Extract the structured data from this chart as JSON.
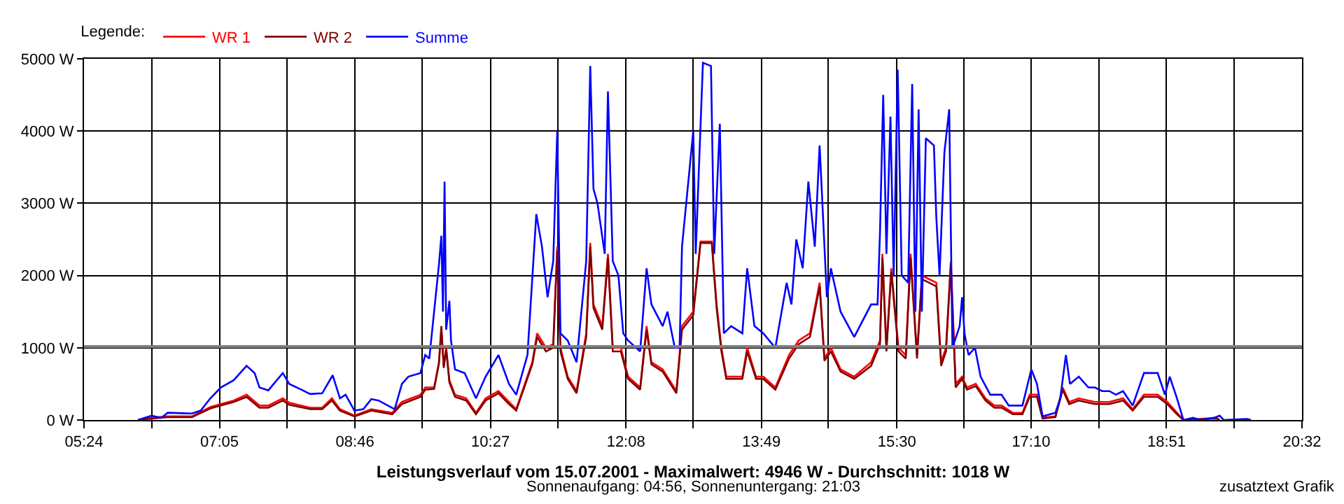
{
  "chart_data": {
    "type": "line",
    "title": "Leistungsverlauf vom 15.07.2001 - Maximalwert: 4946 W - Durchschnitt: 1018 W",
    "subtitle": "Sonnenaufgang: 04:56, Sonnenuntergang: 21:03",
    "legend_title": "Legende:",
    "legend": "top left",
    "grid": true,
    "marker": "none",
    "line_style": "solid",
    "annotations": [
      "zusatztext Grafik"
    ],
    "xlim": [
      5.4,
      20.5333
    ],
    "xticks": [
      {
        "value": 5.4,
        "label": "05:24"
      },
      {
        "value": 6.2407,
        "label": null
      },
      {
        "value": 7.0833,
        "label": "07:05"
      },
      {
        "value": 7.9222,
        "label": null
      },
      {
        "value": 8.7667,
        "label": "08:46"
      },
      {
        "value": 9.6037,
        "label": null
      },
      {
        "value": 10.45,
        "label": "10:27"
      },
      {
        "value": 11.2852,
        "label": null
      },
      {
        "value": 12.1333,
        "label": "12:08"
      },
      {
        "value": 12.9667,
        "label": null
      },
      {
        "value": 13.8167,
        "label": "13:49"
      },
      {
        "value": 14.6481,
        "label": null
      },
      {
        "value": 15.5,
        "label": "15:30"
      },
      {
        "value": 16.3296,
        "label": null
      },
      {
        "value": 17.1667,
        "label": "17:10"
      },
      {
        "value": 18.0111,
        "label": null
      },
      {
        "value": 18.85,
        "label": "18:51"
      },
      {
        "value": 19.6926,
        "label": null
      },
      {
        "value": 20.5333,
        "label": "20:32"
      }
    ],
    "ylim": [
      0,
      5000
    ],
    "yticks": [
      {
        "value": 0,
        "label": "0 W"
      },
      {
        "value": 1000,
        "label": "1000 W"
      },
      {
        "value": 2000,
        "label": "2000 W"
      },
      {
        "value": 3000,
        "label": "3000 W"
      },
      {
        "value": 4000,
        "label": "4000 W"
      },
      {
        "value": 5000,
        "label": "5000 W"
      }
    ],
    "ref_lines": [
      {
        "axis": "y",
        "value": 1018,
        "label": null,
        "color": "#808080"
      }
    ],
    "series": [
      {
        "name": "WR 1",
        "color": "#ff0000",
        "x": [
          6.07,
          6.24,
          6.44,
          6.74,
          6.97,
          7.1,
          7.26,
          7.42,
          7.58,
          7.69,
          7.87,
          7.95,
          8.21,
          8.36,
          8.48,
          8.58,
          8.76,
          8.97,
          9.23,
          9.35,
          9.58,
          9.64,
          9.75,
          9.81,
          9.84,
          9.87,
          9.9,
          9.94,
          10.01,
          10.15,
          10.27,
          10.39,
          10.55,
          10.68,
          10.77,
          10.97,
          11.03,
          11.14,
          11.23,
          11.28,
          11.32,
          11.41,
          11.52,
          11.64,
          11.69,
          11.73,
          11.84,
          11.91,
          11.97,
          12.07,
          12.16,
          12.31,
          12.39,
          12.45,
          12.59,
          12.76,
          12.83,
          12.97,
          13.06,
          13.2,
          13.26,
          13.32,
          13.38,
          13.58,
          13.64,
          13.75,
          13.84,
          13.99,
          14.16,
          14.28,
          14.42,
          14.54,
          14.6,
          14.68,
          14.8,
          14.97,
          15.18,
          15.29,
          15.32,
          15.37,
          15.43,
          15.52,
          15.61,
          15.67,
          15.75,
          15.81,
          15.9,
          15.99,
          16.05,
          16.11,
          16.17,
          16.23,
          16.31,
          16.37,
          16.48,
          16.6,
          16.71,
          16.8,
          16.94,
          17.06,
          17.15,
          17.24,
          17.31,
          17.47,
          17.56,
          17.64,
          17.76,
          17.96,
          18.14,
          18.31,
          18.43,
          18.57,
          18.74,
          18.86,
          18.98,
          19.06,
          19.47,
          19.51
        ],
        "values": [
          0,
          30,
          50,
          50,
          180,
          220,
          270,
          350,
          200,
          200,
          300,
          240,
          170,
          170,
          300,
          150,
          60,
          150,
          100,
          250,
          350,
          450,
          450,
          800,
          1250,
          750,
          1000,
          550,
          350,
          300,
          100,
          300,
          400,
          250,
          150,
          800,
          1200,
          1000,
          1050,
          2400,
          1000,
          600,
          400,
          1200,
          2450,
          1600,
          1300,
          2300,
          1000,
          1000,
          600,
          450,
          1300,
          800,
          700,
          400,
          1300,
          1500,
          2470,
          2470,
          1600,
          1000,
          600,
          600,
          1000,
          600,
          600,
          450,
          900,
          1100,
          1200,
          1900,
          850,
          1000,
          700,
          600,
          800,
          1100,
          2300,
          1000,
          2100,
          1000,
          900,
          2300,
          900,
          2000,
          1950,
          1900,
          800,
          1000,
          2200,
          500,
          600,
          450,
          500,
          300,
          200,
          200,
          100,
          100,
          350,
          350,
          30,
          50,
          450,
          250,
          300,
          250,
          250,
          300,
          150,
          350,
          350,
          250,
          100,
          0,
          30,
          0
        ]
      },
      {
        "name": "WR 2",
        "color": "#800000",
        "x": [
          6.07,
          6.24,
          6.44,
          6.74,
          6.97,
          7.1,
          7.26,
          7.42,
          7.58,
          7.69,
          7.87,
          7.95,
          8.21,
          8.36,
          8.48,
          8.58,
          8.76,
          8.97,
          9.23,
          9.35,
          9.58,
          9.64,
          9.75,
          9.81,
          9.84,
          9.87,
          9.9,
          9.94,
          10.01,
          10.15,
          10.27,
          10.39,
          10.55,
          10.68,
          10.77,
          10.97,
          11.03,
          11.14,
          11.23,
          11.28,
          11.32,
          11.41,
          11.52,
          11.64,
          11.69,
          11.73,
          11.84,
          11.91,
          11.97,
          12.07,
          12.16,
          12.31,
          12.39,
          12.45,
          12.59,
          12.76,
          12.83,
          12.97,
          13.06,
          13.2,
          13.26,
          13.32,
          13.38,
          13.58,
          13.64,
          13.75,
          13.84,
          13.99,
          14.16,
          14.28,
          14.42,
          14.54,
          14.6,
          14.68,
          14.8,
          14.97,
          15.18,
          15.29,
          15.32,
          15.37,
          15.43,
          15.52,
          15.61,
          15.67,
          15.75,
          15.81,
          15.9,
          15.99,
          16.05,
          16.11,
          16.17,
          16.23,
          16.31,
          16.37,
          16.48,
          16.6,
          16.71,
          16.8,
          16.94,
          17.06,
          17.15,
          17.24,
          17.31,
          17.47,
          17.56,
          17.64,
          17.76,
          17.96,
          18.14,
          18.31,
          18.43,
          18.57,
          18.74,
          18.86,
          18.98,
          19.06,
          19.47,
          19.51
        ],
        "values": [
          0,
          20,
          40,
          40,
          160,
          200,
          250,
          320,
          170,
          170,
          270,
          210,
          150,
          150,
          270,
          130,
          50,
          130,
          80,
          220,
          320,
          420,
          430,
          780,
          1300,
          720,
          980,
          520,
          320,
          270,
          80,
          270,
          370,
          220,
          130,
          770,
          1150,
          950,
          1000,
          2350,
          950,
          570,
          370,
          1150,
          2400,
          1550,
          1250,
          2250,
          950,
          950,
          570,
          420,
          1250,
          770,
          670,
          370,
          1250,
          1450,
          2450,
          2450,
          1550,
          950,
          570,
          570,
          950,
          570,
          570,
          420,
          850,
          1050,
          1150,
          1850,
          820,
          950,
          670,
          570,
          750,
          1050,
          2250,
          950,
          2050,
          950,
          850,
          2250,
          850,
          1950,
          1900,
          1850,
          750,
          950,
          2150,
          450,
          570,
          420,
          470,
          270,
          170,
          170,
          80,
          80,
          320,
          320,
          20,
          40,
          420,
          220,
          270,
          220,
          220,
          270,
          130,
          320,
          320,
          220,
          80,
          0,
          20,
          0
        ]
      },
      {
        "name": "Summe",
        "color": "#0000ff",
        "x": [
          6.07,
          6.24,
          6.36,
          6.44,
          6.74,
          6.85,
          6.97,
          7.1,
          7.26,
          7.34,
          7.42,
          7.52,
          7.58,
          7.69,
          7.87,
          7.95,
          8.1,
          8.21,
          8.36,
          8.49,
          8.58,
          8.65,
          8.76,
          8.87,
          8.97,
          9.06,
          9.26,
          9.35,
          9.43,
          9.58,
          9.64,
          9.69,
          9.81,
          9.84,
          9.86,
          9.88,
          9.9,
          9.94,
          9.96,
          10.01,
          10.13,
          10.27,
          10.39,
          10.55,
          10.68,
          10.77,
          10.91,
          11.02,
          11.09,
          11.16,
          11.23,
          11.28,
          11.32,
          11.41,
          11.52,
          11.64,
          11.69,
          11.73,
          11.78,
          11.87,
          11.91,
          11.97,
          12.04,
          12.1,
          12.16,
          12.31,
          12.39,
          12.45,
          12.59,
          12.65,
          12.74,
          12.8,
          12.83,
          12.97,
          13.0,
          13.09,
          13.19,
          13.23,
          13.3,
          13.35,
          13.44,
          13.58,
          13.64,
          13.73,
          13.84,
          13.99,
          14.13,
          14.19,
          14.25,
          14.33,
          14.4,
          14.48,
          14.54,
          14.63,
          14.68,
          14.8,
          14.97,
          15.18,
          15.26,
          15.29,
          15.33,
          15.37,
          15.42,
          15.46,
          15.51,
          15.56,
          15.64,
          15.69,
          15.73,
          15.77,
          15.81,
          15.86,
          15.96,
          15.99,
          16.03,
          16.09,
          16.15,
          16.19,
          16.28,
          16.31,
          16.34,
          16.39,
          16.47,
          16.54,
          16.66,
          16.8,
          16.89,
          17.06,
          17.17,
          17.24,
          17.31,
          17.47,
          17.53,
          17.6,
          17.65,
          17.76,
          17.88,
          17.96,
          18.05,
          18.14,
          18.22,
          18.31,
          18.43,
          18.57,
          18.74,
          18.83,
          18.89,
          18.98,
          19.06,
          19.18,
          19.27,
          19.44,
          19.51,
          19.56,
          19.85,
          19.9
        ],
        "values": [
          0,
          60,
          30,
          100,
          90,
          130,
          300,
          450,
          550,
          650,
          750,
          650,
          450,
          410,
          650,
          500,
          420,
          360,
          370,
          620,
          300,
          350,
          130,
          150,
          290,
          270,
          150,
          500,
          600,
          650,
          900,
          850,
          2150,
          2550,
          1500,
          3300,
          1250,
          1650,
          1100,
          700,
          650,
          300,
          600,
          900,
          500,
          350,
          900,
          2850,
          2400,
          1700,
          2200,
          4000,
          1200,
          1100,
          800,
          2200,
          4900,
          3200,
          3000,
          2300,
          4550,
          2200,
          2000,
          1200,
          1100,
          950,
          2100,
          1600,
          1300,
          1500,
          1000,
          1000,
          2400,
          4000,
          2300,
          4946,
          4900,
          2300,
          4100,
          1200,
          1300,
          1200,
          2100,
          1300,
          1200,
          1000,
          1900,
          1600,
          2500,
          2100,
          3300,
          2400,
          3800,
          1700,
          2100,
          1500,
          1150,
          1600,
          1600,
          2600,
          4500,
          2300,
          4200,
          2000,
          4850,
          2000,
          1900,
          4650,
          1500,
          4300,
          1500,
          3900,
          3800,
          2800,
          2000,
          3700,
          4300,
          1000,
          1300,
          1700,
          1200,
          900,
          1000,
          600,
          350,
          350,
          200,
          200,
          700,
          500,
          50,
          100,
          300,
          900,
          500,
          600,
          450,
          450,
          400,
          400,
          350,
          400,
          200,
          650,
          650,
          350,
          600,
          300,
          0,
          30,
          0,
          30,
          60,
          0,
          15,
          0
        ]
      }
    ]
  }
}
